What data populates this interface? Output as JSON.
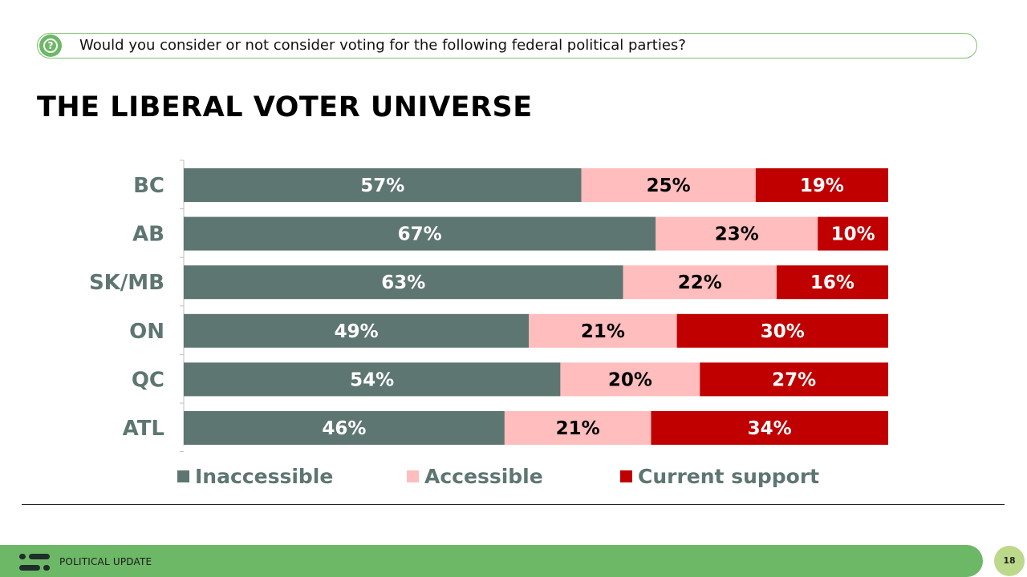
{
  "question": {
    "text": "Would you consider or not consider voting for the following federal political parties?",
    "icon": "question-circle-icon"
  },
  "title": "THE LIBERAL VOTER UNIVERSE",
  "colors": {
    "inaccessible": "#5e7672",
    "accessible": "#ffbdbd",
    "current_support": "#c00000",
    "accent_green": "#6db867"
  },
  "chart_data": {
    "type": "bar",
    "orientation": "horizontal",
    "stacked": true,
    "categories": [
      "BC",
      "AB",
      "SK/MB",
      "ON",
      "QC",
      "ATL"
    ],
    "series": [
      {
        "name": "Inaccessible",
        "values": [
          57,
          67,
          63,
          49,
          54,
          46
        ],
        "labels": [
          "57%",
          "67%",
          "63%",
          "49%",
          "54%",
          "46%"
        ]
      },
      {
        "name": "Accessible",
        "values": [
          25,
          23,
          22,
          21,
          20,
          21
        ],
        "labels": [
          "25%",
          "23%",
          "22%",
          "21%",
          "20%",
          "21%"
        ]
      },
      {
        "name": "Current support",
        "values": [
          19,
          10,
          16,
          30,
          27,
          34
        ],
        "labels": [
          "19%",
          "10%",
          "16%",
          "30%",
          "27%",
          "34%"
        ]
      }
    ],
    "legend_position": "bottom",
    "grid": false
  },
  "footer": {
    "label": "POLITICAL UPDATE",
    "page_number": "18",
    "logo": "abacus-logo-icon"
  }
}
